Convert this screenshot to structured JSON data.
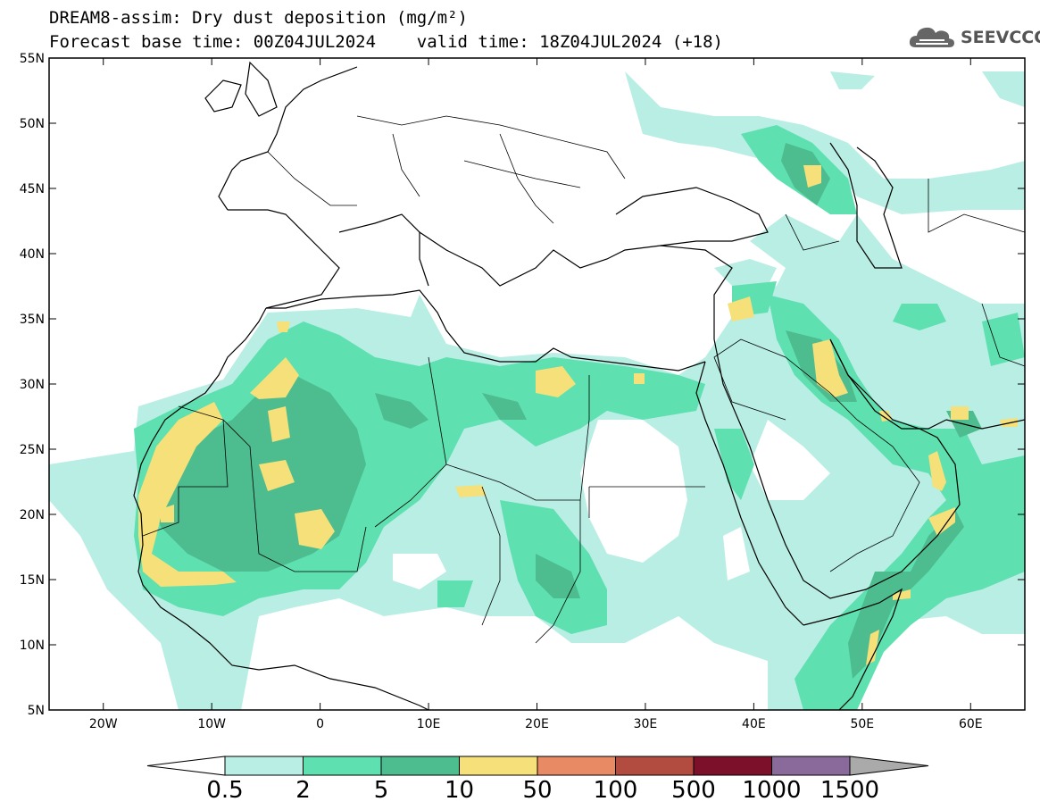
{
  "header": {
    "line1": "DREAM8-assim: Dry dust deposition (mg/m²)",
    "line2": "Forecast base time: 00Z04JUL2024    valid time: 18Z04JUL2024 (+18)"
  },
  "logo": {
    "text": "SEEVCCC",
    "icon": "cloud-logo-icon"
  },
  "map": {
    "projection": "lat-lon",
    "lon_range": [
      -25,
      65
    ],
    "lat_range": [
      5,
      55
    ],
    "lat_labels": [
      "55N",
      "50N",
      "45N",
      "40N",
      "35N",
      "30N",
      "25N",
      "20N",
      "15N",
      "10N",
      "5N"
    ],
    "lon_labels": [
      "20W",
      "10W",
      "0",
      "10E",
      "20E",
      "30E",
      "40E",
      "50E",
      "60E"
    ],
    "frame_color": "#000000"
  },
  "colorbar": {
    "labels": [
      "0.5",
      "2",
      "5",
      "10",
      "50",
      "100",
      "500",
      "1000",
      "1500"
    ],
    "colors": [
      "#b9eee4",
      "#5ee0b0",
      "#4dbc8f",
      "#f5e07a",
      "#e88a64",
      "#b24c40",
      "#7c0f2a",
      "#8a6a9a"
    ],
    "under_color": "#ffffff",
    "over_color": "#aaaaaa"
  },
  "dust_levels": {
    "low": "#b9eee4",
    "mid": "#5ee0b0",
    "high": "#4dbc8f",
    "peak": "#f5e07a"
  }
}
